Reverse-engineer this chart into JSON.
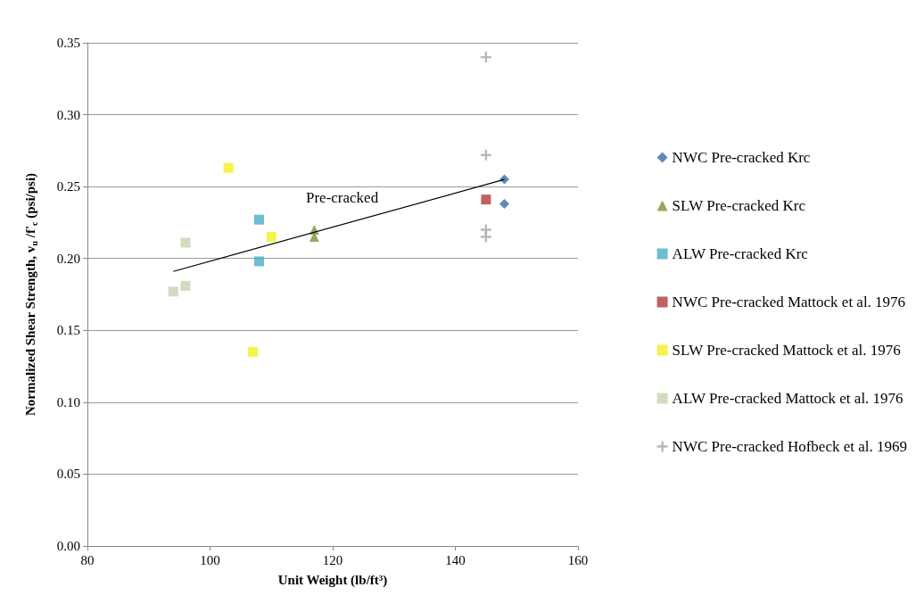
{
  "chart_data": {
    "type": "scatter",
    "xlabel": "Unit Weight (lb/ft³)",
    "ylabel": "Normalized Shear Strength, v$_{u}$ /f'$_{c}$ (psi/psi)",
    "xlim": [
      80,
      160
    ],
    "xticks": [
      80,
      100,
      120,
      140,
      160
    ],
    "ylim": [
      0,
      0.35
    ],
    "yticks": [
      {
        "value": 0,
        "label": "0.00"
      },
      {
        "value": 0.05,
        "label": "0.05"
      },
      {
        "value": 0.1,
        "label": "0.10"
      },
      {
        "value": 0.15,
        "label": "0.15"
      },
      {
        "value": 0.2,
        "label": "0.20"
      },
      {
        "value": 0.25,
        "label": "0.25"
      },
      {
        "value": 0.3,
        "label": "0.30"
      },
      {
        "value": 0.35,
        "label": "0.35"
      }
    ],
    "grid": "y",
    "legend": "right",
    "annotations": [
      "Pre-cracked"
    ],
    "series": [
      {
        "name": "NWC Pre-cracked Krc",
        "color": "#3b6aa6",
        "marker": "diamond",
        "x": [
          148,
          148
        ],
        "values": [
          0.255,
          0.238
        ]
      },
      {
        "name": "SLW Pre-cracked Krc",
        "color": "#76923c",
        "marker": "triangle",
        "x": [
          117,
          117
        ],
        "values": [
          0.22,
          0.215
        ]
      },
      {
        "name": "ALW Pre-cracked Krc",
        "color": "#4aacc6",
        "marker": "square",
        "x": [
          108,
          108
        ],
        "values": [
          0.227,
          0.198
        ]
      },
      {
        "name": "NWC Pre-cracked Mattock et al. 1976",
        "color": "#b03a3a",
        "marker": "square",
        "x": [
          145
        ],
        "values": [
          0.241
        ]
      },
      {
        "name": "SLW Pre-cracked Mattock et al. 1976",
        "color": "#f0f01e",
        "marker": "square",
        "x": [
          103,
          110,
          107
        ],
        "values": [
          0.263,
          0.215,
          0.135
        ]
      },
      {
        "name": "ALW Pre-cracked Mattock et al. 1976",
        "color": "#c4d3b0",
        "marker": "square",
        "x": [
          96,
          96,
          94
        ],
        "values": [
          0.211,
          0.181,
          0.177
        ]
      },
      {
        "name": "NWC Pre-cracked Hofbeck et al. 1969",
        "color": "#a6a6a6",
        "marker": "cross",
        "x": [
          145,
          145,
          145,
          145
        ],
        "values": [
          0.34,
          0.272,
          0.22,
          0.215
        ]
      },
      {
        "type": "line",
        "color": "#000000",
        "marker": "none",
        "line_style": "solid",
        "x": [
          94,
          148
        ],
        "values": [
          0.191,
          0.255
        ]
      }
    ]
  }
}
